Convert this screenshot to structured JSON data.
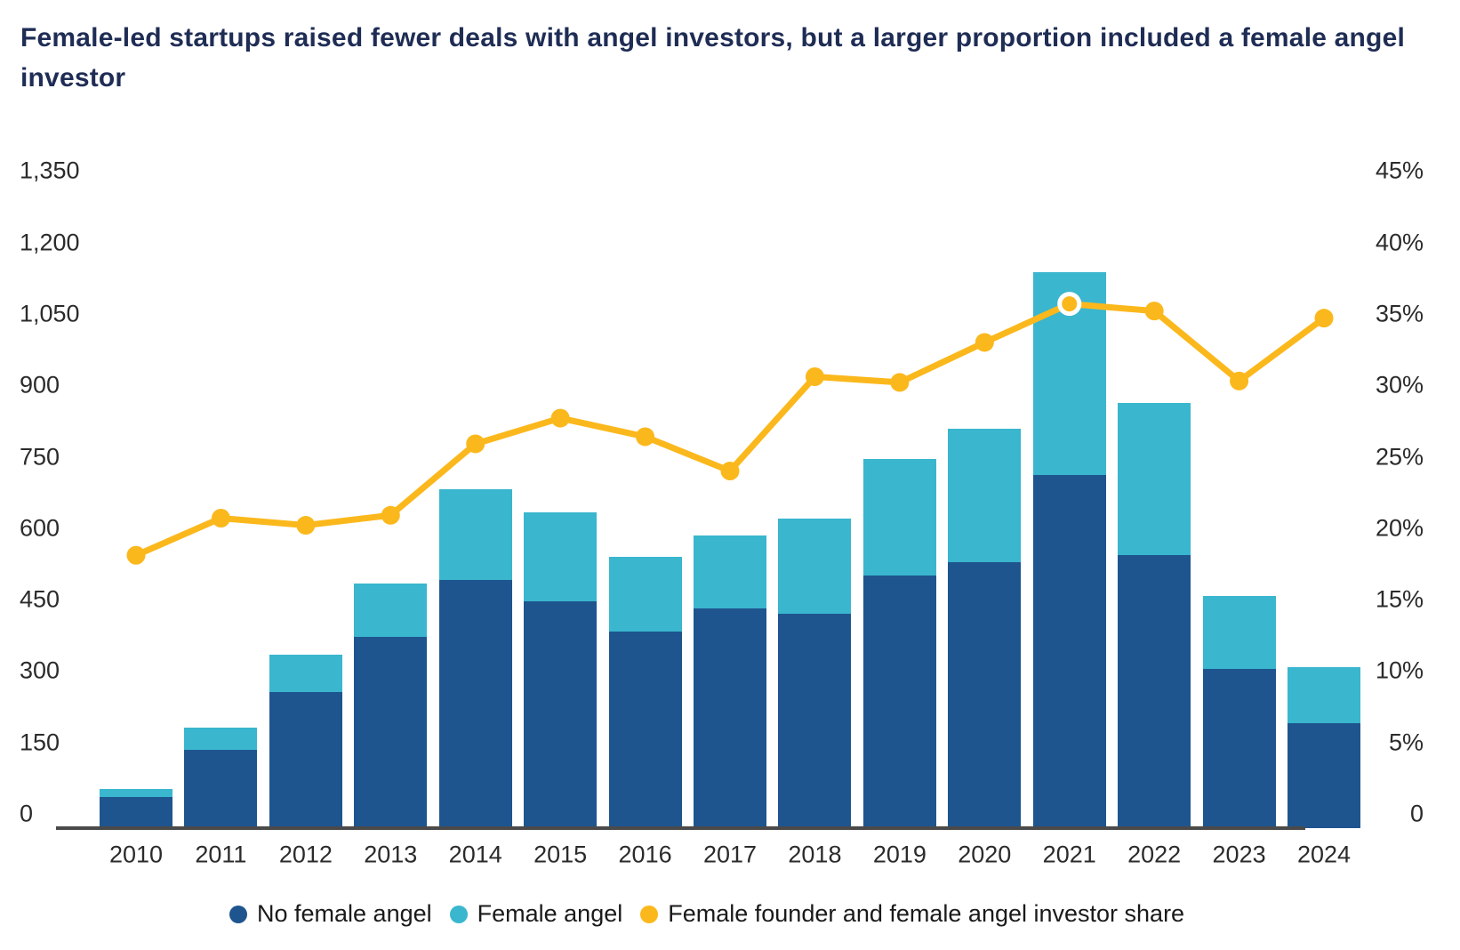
{
  "title": "Female-led startups raised fewer deals with angel investors, but a larger proportion included a female angel investor",
  "colors": {
    "title_text": "#1F2D55",
    "bar_dark_blue": "#1E558F",
    "bar_cyan": "#3AB6CE",
    "line_yellow": "#FBB81C",
    "axis_line": "#4A4A4A",
    "tick_text": "#2B2B2B"
  },
  "chart_data": {
    "type": "combo_stacked_bar_line",
    "title": "Female-led startups raised fewer deals with angel investors, but a larger proportion included a female angel investor",
    "categories": [
      "2010",
      "2011",
      "2012",
      "2013",
      "2014",
      "2015",
      "2016",
      "2017",
      "2018",
      "2019",
      "2020",
      "2021",
      "2022",
      "2023",
      "2024"
    ],
    "series": [
      {
        "name": "No female angel",
        "type": "bar",
        "axis": "left",
        "color": "#1E558F",
        "values": [
          65,
          164,
          286,
          402,
          521,
          476,
          413,
          461,
          450,
          530,
          558,
          742,
          573,
          334,
          220
        ]
      },
      {
        "name": "Female angel",
        "type": "bar",
        "axis": "left",
        "color": "#3AB6CE",
        "values": [
          17,
          47,
          78,
          112,
          191,
          187,
          157,
          154,
          200,
          245,
          281,
          426,
          320,
          154,
          118
        ]
      },
      {
        "name": "Female founder and female angel investor share",
        "type": "line",
        "axis": "right",
        "color": "#FBB81C",
        "values": [
          19.1,
          21.7,
          21.2,
          21.9,
          26.9,
          28.7,
          27.4,
          25.0,
          31.6,
          31.2,
          34.0,
          36.7,
          36.2,
          31.3,
          35.7
        ],
        "highlight_index": 11
      }
    ],
    "bar_totals": [
      82,
      211,
      364,
      514,
      712,
      663,
      570,
      615,
      650,
      775,
      839,
      1168,
      893,
      488,
      338
    ],
    "left_axis": {
      "range": [
        0,
        1350
      ],
      "tick_values": [
        0,
        150,
        300,
        450,
        600,
        750,
        900,
        1050,
        1200,
        1350
      ],
      "tick_labels": [
        "0",
        "150",
        "300",
        "450",
        "600",
        "750",
        "900",
        "1,050",
        "1,200",
        "1,350"
      ]
    },
    "right_axis": {
      "range": [
        0,
        45
      ],
      "tick_values": [
        0,
        5,
        10,
        15,
        20,
        25,
        30,
        35,
        40,
        45
      ],
      "tick_labels": [
        "0",
        "5%",
        "10%",
        "15%",
        "20%",
        "25%",
        "30%",
        "35%",
        "40%",
        "45%"
      ]
    },
    "grid": false,
    "legend_position": "bottom",
    "legend": [
      {
        "label": "No female angel",
        "color": "#1E558F"
      },
      {
        "label": "Female angel",
        "color": "#3AB6CE"
      },
      {
        "label": "Female founder and female angel investor share",
        "color": "#FBB81C"
      }
    ]
  }
}
